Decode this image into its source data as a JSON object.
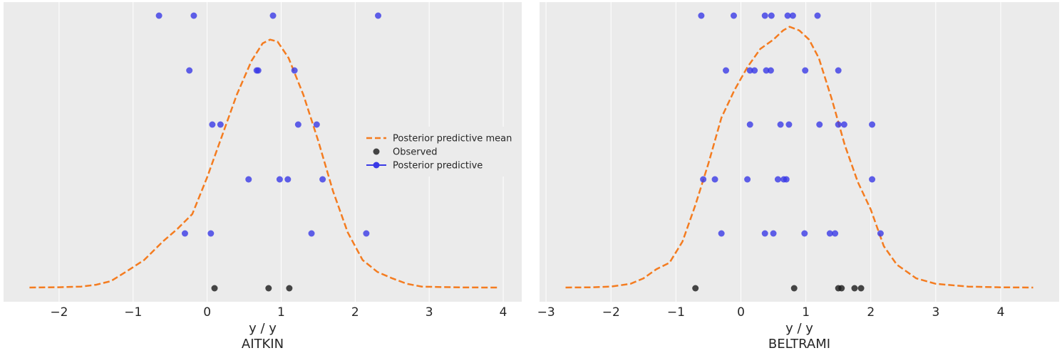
{
  "colors": {
    "background": "#ebebeb",
    "grid": "#ffffff",
    "mean_line": "#f47c20",
    "observed": "#1a1a1a",
    "predictive": "#3a3ae6"
  },
  "legend": {
    "placement": "center-right of first panel",
    "entries": [
      "Posterior predictive mean",
      "Observed",
      "Posterior predictive"
    ]
  },
  "chart_data": [
    {
      "type": "scatter",
      "xlabel": "y / y",
      "title": "AITKIN",
      "xlim": [
        -2.75,
        4.25
      ],
      "xticks": [
        -2,
        -1,
        0,
        1,
        2,
        3,
        4
      ],
      "xtick_labels": [
        "−2",
        "−1",
        "0",
        "1",
        "2",
        "3",
        "4"
      ],
      "grid": true,
      "observed_x": [
        0.1,
        0.83,
        1.11
      ],
      "predictive_rows": [
        [
          -0.3,
          0.05,
          1.41,
          2.15
        ],
        [
          0.56,
          0.98,
          1.09,
          1.56
        ],
        [
          0.07,
          0.18,
          1.23,
          1.48
        ],
        [
          -0.24,
          0.67,
          0.69,
          1.18
        ],
        [
          -0.65,
          -0.18,
          0.89,
          2.31
        ]
      ],
      "mean_curve": {
        "x": [
          -2.4,
          -2.0,
          -1.7,
          -1.5,
          -1.3,
          -1.1,
          -0.85,
          -0.6,
          -0.4,
          -0.2,
          0.0,
          0.2,
          0.4,
          0.6,
          0.75,
          0.85,
          0.95,
          1.1,
          1.3,
          1.5,
          1.7,
          1.9,
          2.1,
          2.3,
          2.5,
          2.7,
          2.9,
          3.2,
          3.5,
          3.95
        ],
        "y": [
          0.0,
          0.003,
          0.01,
          0.03,
          0.07,
          0.17,
          0.3,
          0.5,
          0.64,
          0.8,
          1.2,
          1.65,
          2.1,
          2.47,
          2.66,
          2.7,
          2.68,
          2.5,
          2.1,
          1.6,
          1.05,
          0.6,
          0.3,
          0.17,
          0.1,
          0.04,
          0.01,
          0.005,
          0.001,
          0.0
        ]
      },
      "ylim": [
        -0.1,
        3.2
      ]
    },
    {
      "type": "scatter",
      "xlabel": "y / y",
      "title": "BELTRAMI",
      "xlim": [
        -3.1,
        4.9
      ],
      "xticks": [
        -3,
        -2,
        -1,
        0,
        1,
        2,
        3,
        4
      ],
      "xtick_labels": [
        "−3",
        "−2",
        "−1",
        "0",
        "1",
        "2",
        "3",
        "4"
      ],
      "grid": true,
      "observed_x": [
        -0.7,
        0.82,
        1.5,
        1.55,
        1.75,
        1.85
      ],
      "predictive_rows": [
        [
          -0.3,
          0.37,
          0.5,
          0.98,
          1.37,
          1.45,
          2.15
        ],
        [
          -0.58,
          -0.4,
          0.1,
          0.57,
          0.66,
          0.7,
          2.02
        ],
        [
          0.14,
          0.61,
          0.74,
          1.21,
          1.5,
          1.59,
          2.02
        ],
        [
          -0.23,
          0.14,
          0.21,
          0.39,
          0.46,
          0.99,
          1.5
        ],
        [
          -0.61,
          -0.11,
          0.37,
          0.47,
          0.72,
          0.8,
          1.18
        ]
      ],
      "mean_curve": {
        "x": [
          -2.7,
          -2.3,
          -2.0,
          -1.7,
          -1.5,
          -1.3,
          -1.1,
          -0.9,
          -0.7,
          -0.5,
          -0.3,
          -0.1,
          0.1,
          0.3,
          0.5,
          0.65,
          0.75,
          0.9,
          1.05,
          1.2,
          1.4,
          1.6,
          1.8,
          2.0,
          2.2,
          2.4,
          2.7,
          3.0,
          3.5,
          4.0,
          4.5
        ],
        "y": [
          0.0,
          0.002,
          0.01,
          0.04,
          0.1,
          0.2,
          0.27,
          0.5,
          0.9,
          1.35,
          1.85,
          2.15,
          2.4,
          2.6,
          2.7,
          2.8,
          2.84,
          2.8,
          2.7,
          2.5,
          2.05,
          1.55,
          1.15,
          0.85,
          0.45,
          0.25,
          0.1,
          0.04,
          0.01,
          0.002,
          0.0
        ]
      },
      "ylim": [
        -0.1,
        3.2
      ]
    }
  ]
}
